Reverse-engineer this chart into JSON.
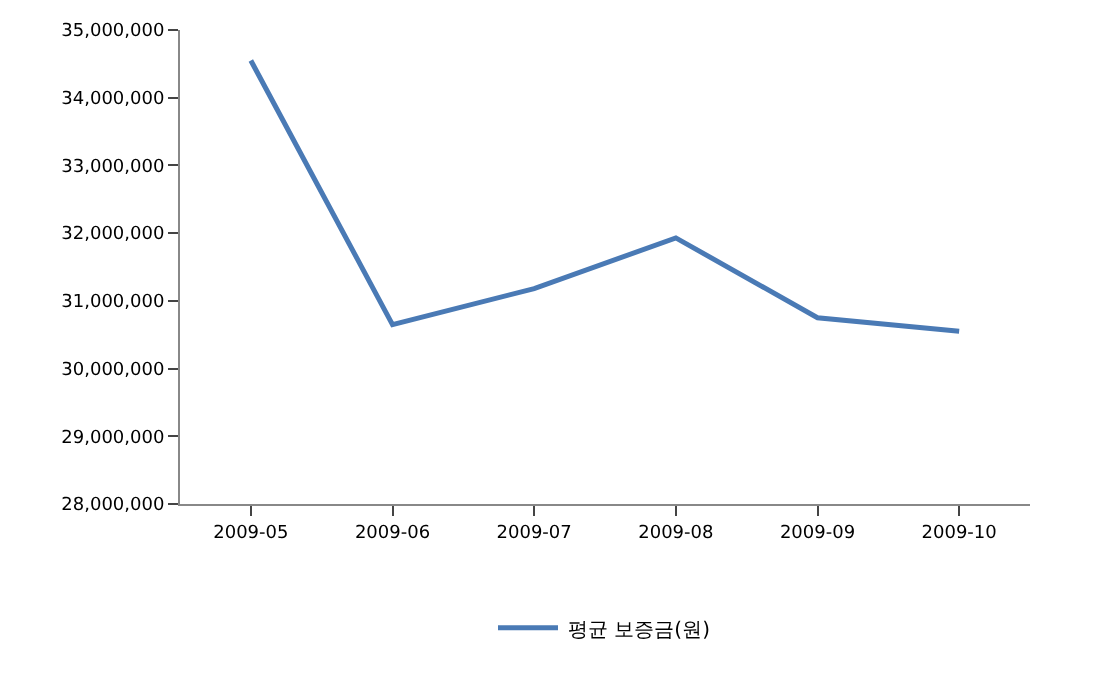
{
  "chart_data": {
    "type": "line",
    "categories": [
      "2009-05",
      "2009-06",
      "2009-07",
      "2009-08",
      "2009-09",
      "2009-10"
    ],
    "series": [
      {
        "name": "평균 보증금(원)",
        "color": "#4a7ab5",
        "values": [
          34550000,
          30650000,
          31180000,
          31930000,
          30750000,
          30550000
        ]
      }
    ],
    "ylim": [
      28000000,
      35000000
    ],
    "yticks": [
      {
        "value": 28000000,
        "label": "28,000,000"
      },
      {
        "value": 29000000,
        "label": "29,000,000"
      },
      {
        "value": 30000000,
        "label": "30,000,000"
      },
      {
        "value": 31000000,
        "label": "31,000,000"
      },
      {
        "value": 32000000,
        "label": "32,000,000"
      },
      {
        "value": 33000000,
        "label": "33,000,000"
      },
      {
        "value": 34000000,
        "label": "34,000,000"
      },
      {
        "value": 35000000,
        "label": "35,000,000"
      }
    ],
    "legend": "bottom",
    "marker": "none",
    "line_style": "solid"
  }
}
